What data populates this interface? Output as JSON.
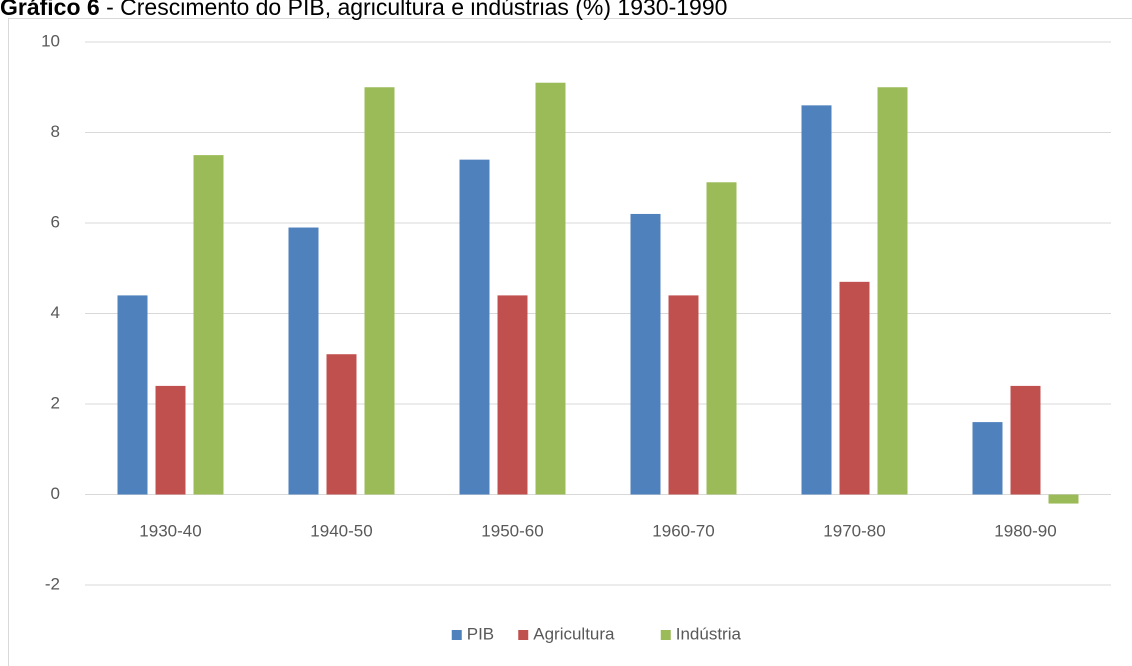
{
  "chart_data": {
    "type": "bar",
    "title": "Gráfico 6",
    "subtitle": " - Crescimento do PIB, agricultura e indústrias (%) 1930-1990",
    "categories": [
      "1930-40",
      "1940-50",
      "1950-60",
      "1960-70",
      "1970-80",
      "1980-90"
    ],
    "series": [
      {
        "name": "PIB",
        "color": "#4f81bd",
        "values": [
          4.4,
          5.9,
          7.4,
          6.2,
          8.6,
          1.6
        ]
      },
      {
        "name": "Agricultura",
        "color": "#c0504d",
        "values": [
          2.4,
          3.1,
          4.4,
          4.4,
          4.7,
          2.4
        ]
      },
      {
        "name": "Indústria",
        "color": "#9bbb59",
        "values": [
          7.5,
          9.0,
          9.1,
          6.9,
          9.0,
          -0.2
        ]
      }
    ],
    "ylim": [
      -2,
      10
    ],
    "yticks": [
      -2,
      0,
      2,
      4,
      6,
      8,
      10
    ],
    "grid": true,
    "legend": "bottom"
  }
}
